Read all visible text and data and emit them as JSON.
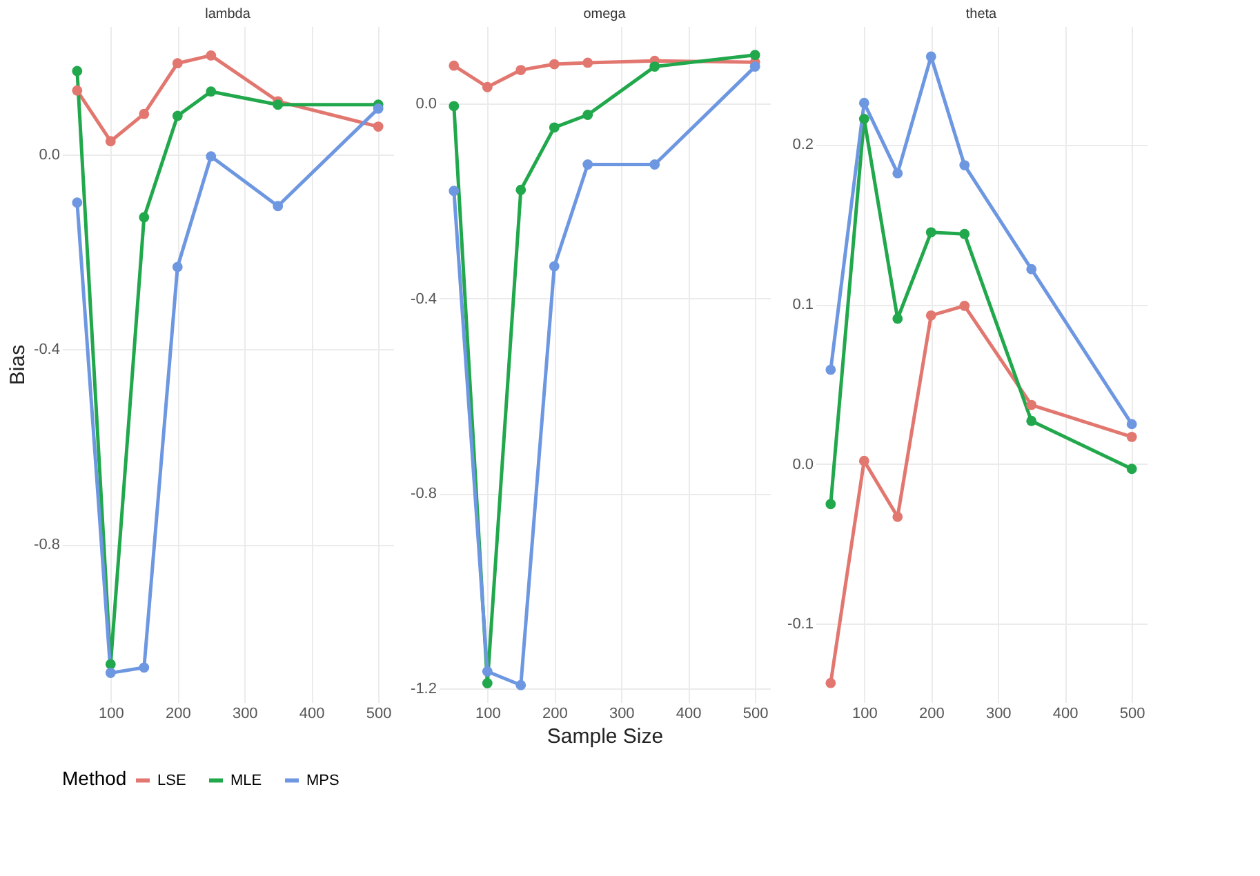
{
  "chart_data": [
    {
      "type": "line",
      "title": "lambda",
      "ylabel": "Bias",
      "legend_title": "Method",
      "legend": "bottom",
      "grid": true,
      "marker": "circle",
      "line_style": "solid",
      "x": [
        50,
        100,
        150,
        200,
        250,
        350,
        500
      ],
      "xlim": [
        27.5,
        522.5
      ],
      "xticks": [
        100,
        200,
        300,
        400,
        500
      ],
      "ylim": [
        -1.124,
        0.263
      ],
      "yticks": [
        {
          "value": -0.8,
          "label": "-0.8"
        },
        {
          "value": -0.4,
          "label": "-0.4"
        },
        {
          "value": 0,
          "label": "0.0"
        }
      ],
      "series": [
        {
          "name": "LSE",
          "color": "#e27770",
          "values": [
            0.131,
            0.027,
            0.083,
            0.187,
            0.203,
            0.109,
            0.057
          ]
        },
        {
          "name": "MLE",
          "color": "#22a84c",
          "values": [
            0.171,
            -1.046,
            -0.129,
            0.079,
            0.129,
            0.102,
            0.102
          ]
        },
        {
          "name": "MPS",
          "color": "#6e97e2",
          "values": [
            -0.099,
            -1.064,
            -1.053,
            -0.231,
            -0.004,
            -0.106,
            0.094
          ]
        }
      ]
    },
    {
      "type": "line",
      "title": "omega",
      "xlabel": "Sample Size",
      "grid": true,
      "marker": "circle",
      "line_style": "solid",
      "x": [
        50,
        100,
        150,
        200,
        250,
        350,
        500
      ],
      "xlim": [
        27.5,
        522.5
      ],
      "xticks": [
        100,
        200,
        300,
        400,
        500
      ],
      "ylim": [
        -1.229,
        0.159
      ],
      "yticks": [
        {
          "value": -1.2,
          "label": "-1.2"
        },
        {
          "value": -0.8,
          "label": "-0.8"
        },
        {
          "value": -0.4,
          "label": "-0.4"
        },
        {
          "value": 0,
          "label": "0.0"
        }
      ],
      "series": [
        {
          "name": "LSE",
          "color": "#e27770",
          "values": [
            0.078,
            0.034,
            0.069,
            0.081,
            0.084,
            0.088,
            0.085
          ]
        },
        {
          "name": "MLE",
          "color": "#22a84c",
          "values": [
            -0.005,
            -1.19,
            -0.177,
            -0.049,
            -0.023,
            0.076,
            0.1
          ]
        },
        {
          "name": "MPS",
          "color": "#6e97e2",
          "values": [
            -0.179,
            -1.166,
            -1.194,
            -0.334,
            -0.125,
            -0.125,
            0.076
          ]
        }
      ]
    },
    {
      "type": "line",
      "title": "theta",
      "grid": true,
      "marker": "circle",
      "line_style": "solid",
      "x": [
        50,
        100,
        150,
        200,
        250,
        350,
        500
      ],
      "xlim": [
        27.5,
        522.5
      ],
      "xticks": [
        100,
        200,
        300,
        400,
        500
      ],
      "ylim": [
        -0.149,
        0.274
      ],
      "yticks": [
        {
          "value": -0.1,
          "label": "-0.1"
        },
        {
          "value": 0,
          "label": "0.0"
        },
        {
          "value": 0.1,
          "label": "0.1"
        },
        {
          "value": 0.2,
          "label": "0.2"
        }
      ],
      "series": [
        {
          "name": "LSE",
          "color": "#e27770",
          "values": [
            -0.137,
            0.002,
            -0.033,
            0.093,
            0.099,
            0.037,
            0.017
          ]
        },
        {
          "name": "MLE",
          "color": "#22a84c",
          "values": [
            -0.025,
            0.216,
            0.091,
            0.145,
            0.144,
            0.027,
            -0.003
          ]
        },
        {
          "name": "MPS",
          "color": "#6e97e2",
          "values": [
            0.059,
            0.226,
            0.182,
            0.255,
            0.187,
            0.122,
            0.025
          ]
        }
      ]
    }
  ]
}
